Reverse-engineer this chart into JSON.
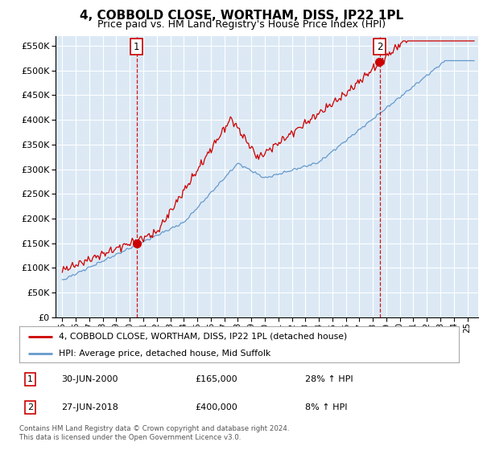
{
  "title": "4, COBBOLD CLOSE, WORTHAM, DISS, IP22 1PL",
  "subtitle": "Price paid vs. HM Land Registry's House Price Index (HPI)",
  "ytick_values": [
    0,
    50000,
    100000,
    150000,
    200000,
    250000,
    300000,
    350000,
    400000,
    450000,
    500000,
    550000
  ],
  "ylim": [
    0,
    570000
  ],
  "xlim_start": 1994.5,
  "xlim_end": 2025.8,
  "bg_color": "#dce9f5",
  "grid_color": "#ffffff",
  "sale1_year": 2000.5,
  "sale1_price": 165000,
  "sale2_year": 2018.5,
  "sale2_price": 400000,
  "legend_line1": "4, COBBOLD CLOSE, WORTHAM, DISS, IP22 1PL (detached house)",
  "legend_line2": "HPI: Average price, detached house, Mid Suffolk",
  "ann1_date": "30-JUN-2000",
  "ann1_price": "£165,000",
  "ann1_hpi": "28% ↑ HPI",
  "ann2_date": "27-JUN-2018",
  "ann2_price": "£400,000",
  "ann2_hpi": "8% ↑ HPI",
  "footer": "Contains HM Land Registry data © Crown copyright and database right 2024.\nThis data is licensed under the Open Government Licence v3.0.",
  "red_color": "#cc0000",
  "blue_color": "#6699cc",
  "title_fontsize": 11,
  "subtitle_fontsize": 9
}
